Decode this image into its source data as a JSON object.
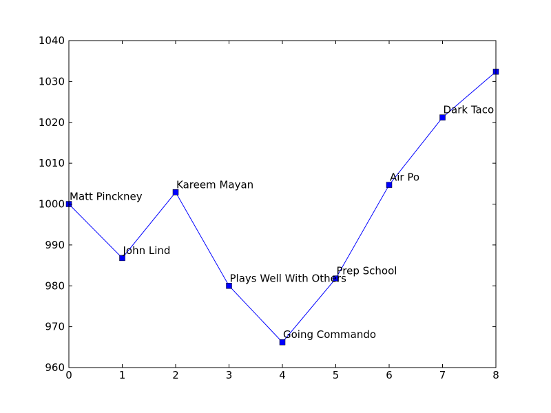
{
  "chart_data": {
    "type": "line",
    "title": "",
    "xlabel": "",
    "ylabel": "",
    "xlim": [
      0,
      8
    ],
    "ylim": [
      960,
      1040
    ],
    "xticks": [
      0,
      1,
      2,
      3,
      4,
      5,
      6,
      7,
      8
    ],
    "yticks": [
      960,
      970,
      980,
      990,
      1000,
      1010,
      1020,
      1030,
      1040
    ],
    "grid": false,
    "series": [
      {
        "color": "#0000ff",
        "marker": "square",
        "x": [
          0,
          1,
          2,
          3,
          4,
          5,
          6,
          7,
          8
        ],
        "y": [
          1000,
          986.8,
          1002.9,
          980,
          966.2,
          981.8,
          1004.7,
          1021.2,
          1032.4
        ],
        "point_labels": [
          "Matt Pinckney",
          "John Lind",
          "Kareem Mayan",
          "Plays Well With Others",
          "Going Commando",
          "Prep School",
          "Air Po",
          "Dark Taco",
          ""
        ]
      }
    ]
  }
}
